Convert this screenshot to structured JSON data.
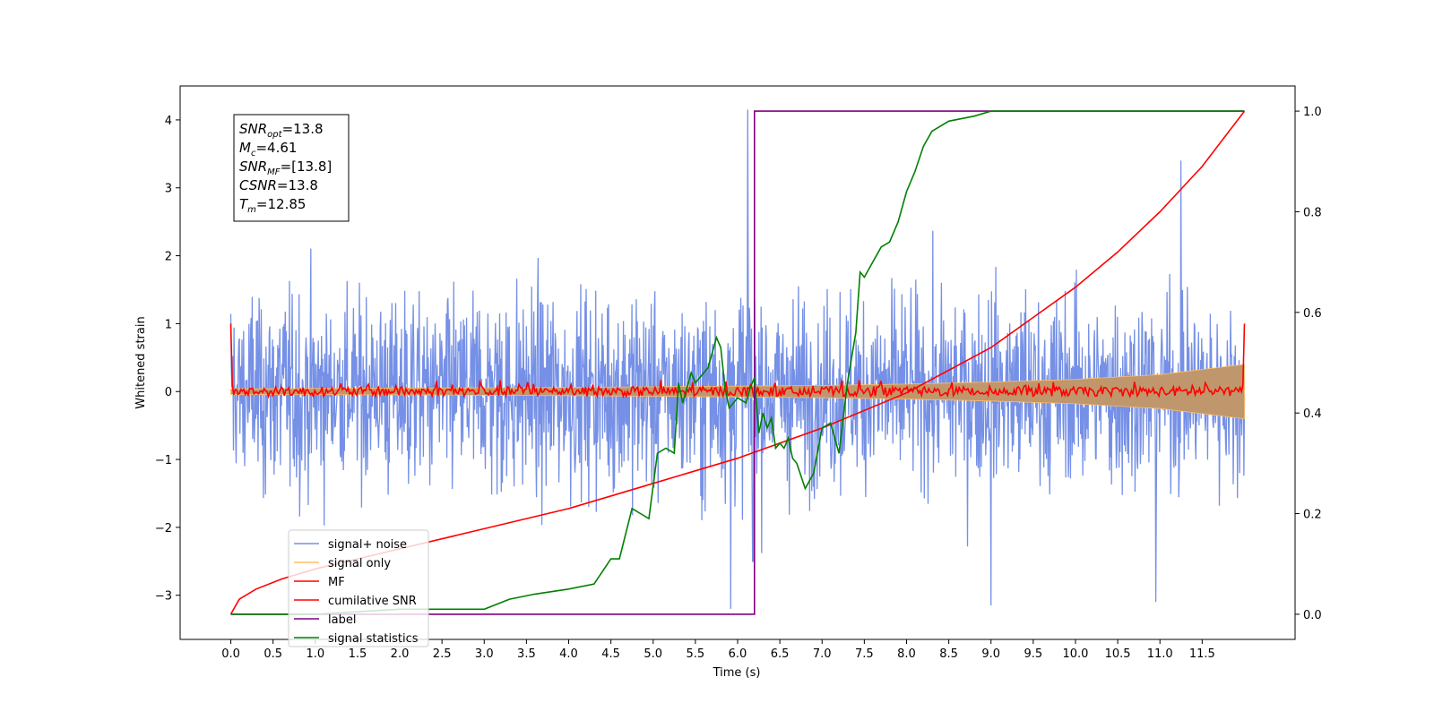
{
  "chart_data": {
    "type": "line",
    "title": "",
    "xlabel": "Time (s)",
    "ylabel": "Whitened strain",
    "y2label": "",
    "xlim": [
      -0.6,
      12.6
    ],
    "ylim": [
      -3.65,
      4.5
    ],
    "y2lim": [
      -0.05,
      1.05
    ],
    "x_ticks": [
      0.0,
      0.5,
      1.0,
      1.5,
      2.0,
      2.5,
      3.0,
      3.5,
      4.0,
      4.5,
      5.0,
      5.5,
      6.0,
      6.5,
      7.0,
      7.5,
      8.0,
      8.5,
      9.0,
      9.5,
      10.0,
      10.5,
      11.0,
      11.5
    ],
    "x_tick_labels": [
      "0.0",
      "0.5",
      "1.0",
      "1.5",
      "2.0",
      "2.5",
      "3.0",
      "3.5",
      "4.0",
      "4.5",
      "5.0",
      "5.5",
      "6.0",
      "6.5",
      "7.0",
      "7.5",
      "8.0",
      "8.5",
      "9.0",
      "9.5",
      "10.0",
      "10.5",
      "11.0",
      "11.5"
    ],
    "y_ticks": [
      -3,
      -2,
      -1,
      0,
      1,
      2,
      3,
      4
    ],
    "y_tick_labels": [
      "−3",
      "−2",
      "−1",
      "0",
      "1",
      "2",
      "3",
      "4"
    ],
    "y2_ticks": [
      0.0,
      0.2,
      0.4,
      0.6,
      0.8,
      1.0
    ],
    "y2_tick_labels": [
      "0.0",
      "0.2",
      "0.4",
      "0.6",
      "0.8",
      "1.0"
    ],
    "grid": false,
    "legend_position": "lower-left",
    "legend": [
      {
        "name": "signal+ noise",
        "color": "#7590e6"
      },
      {
        "name": "signal only",
        "color": "#ffbd66"
      },
      {
        "name": "MF",
        "color": "#ff0000"
      },
      {
        "name": "cumilative SNR",
        "color": "#ff0000"
      },
      {
        "name": "label",
        "color": "#800080"
      },
      {
        "name": "signal statistics",
        "color": "#008000"
      }
    ],
    "annotation": {
      "lines": [
        {
          "base": "SNR",
          "sub": "opt",
          "rest": "=13.8"
        },
        {
          "base": "M",
          "sub": "c",
          "rest": "=4.61"
        },
        {
          "base": "SNR",
          "sub": "MF",
          "rest": "=[13.8]"
        },
        {
          "base": "CSNR",
          "sub": "",
          "rest": "=13.8"
        },
        {
          "base": "T",
          "sub": "m",
          "rest": "=12.85"
        }
      ]
    },
    "series": [
      {
        "name": "signal+ noise",
        "axis": "left",
        "color": "#7590e6",
        "x_range": [
          0.0,
          12.0
        ],
        "amplitude_envelope": [
          -1.1,
          1.3
        ],
        "peak_values": [
          {
            "x": 6.12,
            "y": 4.15
          },
          {
            "x": 5.92,
            "y": -3.3
          },
          {
            "x": 6.18,
            "y": -2.5
          },
          {
            "x": 11.25,
            "y": 3.4
          },
          {
            "x": 9.0,
            "y": -3.15
          },
          {
            "x": 10.95,
            "y": -3.1
          }
        ]
      },
      {
        "name": "signal only",
        "axis": "left",
        "color": "#ffbd66",
        "x": [
          0,
          1,
          2,
          3,
          4,
          5,
          6,
          7,
          8,
          9,
          10,
          11,
          12
        ],
        "envelope": [
          0.04,
          0.045,
          0.05,
          0.055,
          0.06,
          0.07,
          0.08,
          0.09,
          0.11,
          0.14,
          0.18,
          0.25,
          0.4
        ]
      },
      {
        "name": "MF",
        "axis": "left",
        "color": "#ff0000",
        "x_range": [
          0.0,
          12.0
        ],
        "start_value": 1.0,
        "end_value": 1.0,
        "jitter": 0.07
      },
      {
        "name": "cumilative SNR",
        "axis": "right",
        "color": "#ff0000",
        "x": [
          0.0,
          0.1,
          0.3,
          0.6,
          1.0,
          1.5,
          2.0,
          3.0,
          4.0,
          5.0,
          6.0,
          7.0,
          8.0,
          9.0,
          10.0,
          10.5,
          11.0,
          11.5,
          12.0
        ],
        "y": [
          0.0,
          0.03,
          0.05,
          0.07,
          0.09,
          0.11,
          0.13,
          0.17,
          0.21,
          0.26,
          0.31,
          0.37,
          0.44,
          0.53,
          0.65,
          0.72,
          0.8,
          0.89,
          1.0
        ]
      },
      {
        "name": "label",
        "axis": "right",
        "color": "#800080",
        "x": [
          0.0,
          6.2,
          6.2,
          12.0
        ],
        "y": [
          0.0,
          0.0,
          1.0,
          1.0
        ]
      },
      {
        "name": "signal statistics",
        "axis": "right",
        "color": "#008000",
        "x": [
          0.0,
          1.0,
          2.0,
          2.3,
          3.0,
          3.3,
          3.6,
          4.0,
          4.3,
          4.5,
          4.6,
          4.75,
          4.85,
          4.95,
          5.05,
          5.15,
          5.25,
          5.3,
          5.35,
          5.45,
          5.5,
          5.55,
          5.65,
          5.75,
          5.8,
          5.85,
          5.9,
          6.0,
          6.1,
          6.15,
          6.2,
          6.25,
          6.3,
          6.35,
          6.4,
          6.45,
          6.5,
          6.55,
          6.6,
          6.65,
          6.7,
          6.8,
          6.9,
          7.0,
          7.1,
          7.2,
          7.3,
          7.4,
          7.45,
          7.5,
          7.6,
          7.7,
          7.8,
          7.9,
          8.0,
          8.1,
          8.2,
          8.3,
          8.5,
          8.8,
          9.0,
          9.5,
          10.0,
          10.5,
          11.0,
          11.5,
          12.0
        ],
        "y": [
          0.0,
          0.0,
          0.01,
          0.01,
          0.01,
          0.03,
          0.04,
          0.05,
          0.06,
          0.11,
          0.11,
          0.21,
          0.2,
          0.19,
          0.32,
          0.33,
          0.32,
          0.46,
          0.42,
          0.48,
          0.46,
          0.47,
          0.49,
          0.55,
          0.53,
          0.45,
          0.41,
          0.43,
          0.42,
          0.45,
          0.47,
          0.36,
          0.4,
          0.37,
          0.39,
          0.33,
          0.34,
          0.33,
          0.35,
          0.31,
          0.3,
          0.25,
          0.28,
          0.37,
          0.38,
          0.32,
          0.46,
          0.56,
          0.68,
          0.67,
          0.7,
          0.73,
          0.74,
          0.78,
          0.84,
          0.88,
          0.93,
          0.96,
          0.98,
          0.99,
          1.0,
          1.0,
          1.0,
          1.0,
          1.0,
          1.0,
          1.0
        ]
      }
    ]
  }
}
